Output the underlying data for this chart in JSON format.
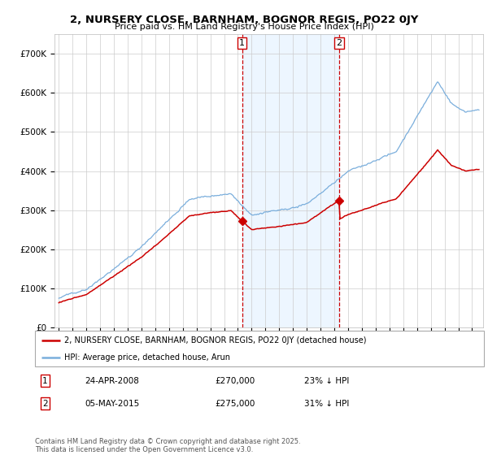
{
  "title": "2, NURSERY CLOSE, BARNHAM, BOGNOR REGIS, PO22 0JY",
  "subtitle": "Price paid vs. HM Land Registry's House Price Index (HPI)",
  "background_color": "#ffffff",
  "grid_color": "#cccccc",
  "hpi_color": "#7aaedc",
  "price_color": "#cc0000",
  "shade_color": "#ddeeff",
  "purchase1_date": "24-APR-2008",
  "purchase1_price": 270000,
  "purchase1_hpi_diff": "23% ↓ HPI",
  "purchase2_date": "05-MAY-2015",
  "purchase2_price": 275000,
  "purchase2_hpi_diff": "31% ↓ HPI",
  "legend1": "2, NURSERY CLOSE, BARNHAM, BOGNOR REGIS, PO22 0JY (detached house)",
  "legend2": "HPI: Average price, detached house, Arun",
  "footer": "Contains HM Land Registry data © Crown copyright and database right 2025.\nThis data is licensed under the Open Government Licence v3.0.",
  "ylim": [
    0,
    750000
  ],
  "yticks": [
    0,
    100000,
    200000,
    300000,
    400000,
    500000,
    600000,
    700000
  ],
  "ytick_labels": [
    "£0",
    "£100K",
    "£200K",
    "£300K",
    "£400K",
    "£500K",
    "£600K",
    "£700K"
  ],
  "purchase1_x": 2008.31,
  "purchase2_x": 2015.35,
  "vline_color": "#cc0000",
  "xlim_left": 1994.7,
  "xlim_right": 2025.8
}
